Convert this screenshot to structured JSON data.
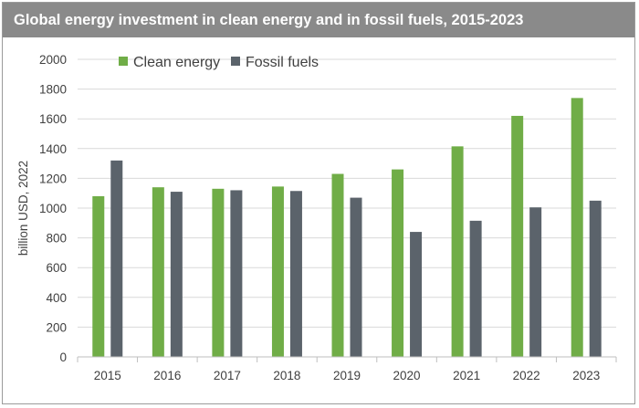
{
  "chart_data": {
    "type": "bar",
    "title": "Global energy investment in clean energy and in fossil fuels, 2015-2023",
    "xlabel": "",
    "ylabel": "billion USD, 2022",
    "categories": [
      "2015",
      "2016",
      "2017",
      "2018",
      "2019",
      "2020",
      "2021",
      "2022",
      "2023"
    ],
    "series": [
      {
        "name": "Clean energy",
        "color": "#70ad47",
        "values": [
          1080,
          1140,
          1130,
          1145,
          1230,
          1260,
          1415,
          1620,
          1740
        ]
      },
      {
        "name": "Fossil fuels",
        "color": "#5b636b",
        "values": [
          1320,
          1110,
          1120,
          1115,
          1070,
          840,
          915,
          1005,
          1050
        ]
      }
    ],
    "ylim": [
      0,
      2000
    ],
    "yticks": [
      0,
      200,
      400,
      600,
      800,
      1000,
      1200,
      1400,
      1600,
      1800,
      2000
    ],
    "grid": true,
    "legend_position": "top-left"
  }
}
